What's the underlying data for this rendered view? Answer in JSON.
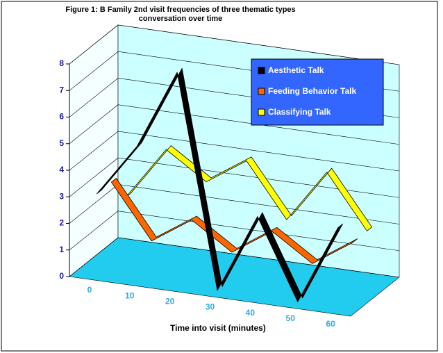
{
  "chart_data": {
    "type": "line3d",
    "title": "Figure 1: B Family 2nd visit frequencies of three thematic types conversation over time",
    "x_label": "Time into visit (minutes)",
    "categories": [
      "0",
      "10",
      "20",
      "30",
      "40",
      "50",
      "60"
    ],
    "series": [
      {
        "name": "Aesthetic Talk",
        "color": "#000000",
        "values": [
          3,
          5,
          8,
          0,
          3,
          0,
          3
        ]
      },
      {
        "name": "Feeding Behavior Talk",
        "color": "#ff6600",
        "values": [
          3,
          1,
          2,
          1,
          2,
          1,
          2
        ]
      },
      {
        "name": "Classifying Talk",
        "color": "#ffff00",
        "values": [
          2,
          4,
          3,
          4,
          2,
          4,
          2
        ]
      }
    ],
    "ylim": [
      0,
      8
    ],
    "yticks": [
      0,
      1,
      2,
      3,
      4,
      5,
      6,
      7,
      8
    ],
    "grid": true,
    "legend": "top-right"
  }
}
